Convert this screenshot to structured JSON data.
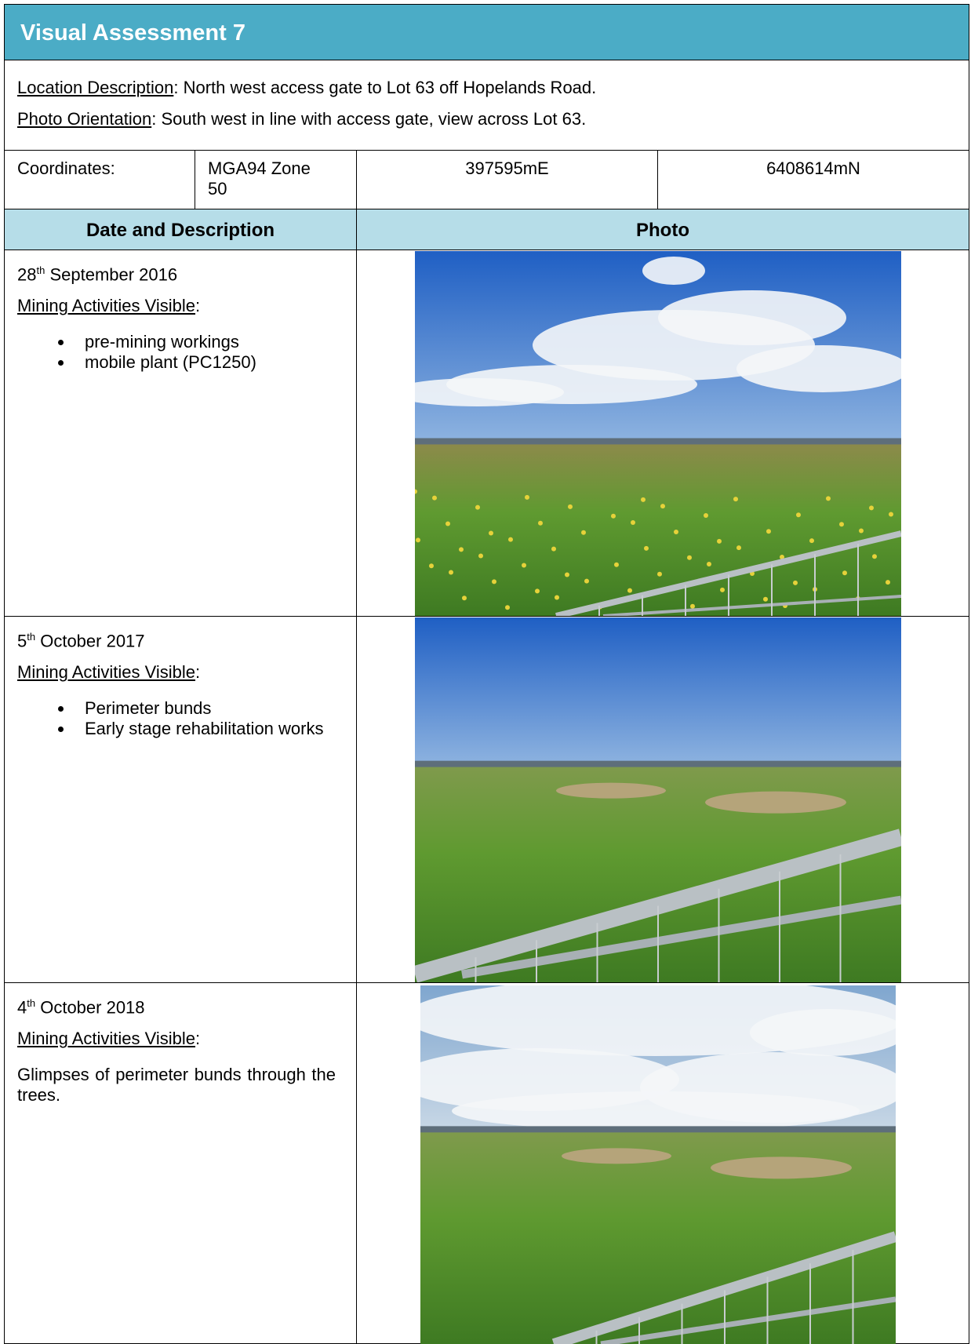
{
  "header": {
    "title": "Visual Assessment 7"
  },
  "location": {
    "label": "Location Description",
    "text": ": North west access gate to Lot 63 off Hopelands Road."
  },
  "orientation": {
    "label": "Photo Orientation",
    "text": ": South west in line with access gate, view across Lot 63."
  },
  "coordinates": {
    "label": "Coordinates:",
    "zone": "MGA94 Zone 50",
    "easting": "397595mE",
    "northing": "6408614mN"
  },
  "columns": [
    "Date and Description",
    "Photo"
  ],
  "entries": [
    {
      "day": "28",
      "ordinal": "th",
      "date": "September 2016",
      "activities_label": "Mining Activities Visible",
      "activities_suffix": ":",
      "items": [
        "pre-mining workings",
        "mobile plant (PC1250)"
      ]
    },
    {
      "day": "5",
      "ordinal": "th",
      "date": "October 2017",
      "activities_label": "Mining Activities Visible",
      "activities_suffix": ":",
      "items": [
        "Perimeter bunds",
        "Early stage rehabilitation works"
      ]
    },
    {
      "day": "4",
      "ordinal": "th",
      "date": "October 2018",
      "activities_label": "Mining Activities Visible",
      "activities_suffix": ":",
      "description": "Glimpses of perimeter bunds through the trees."
    }
  ]
}
